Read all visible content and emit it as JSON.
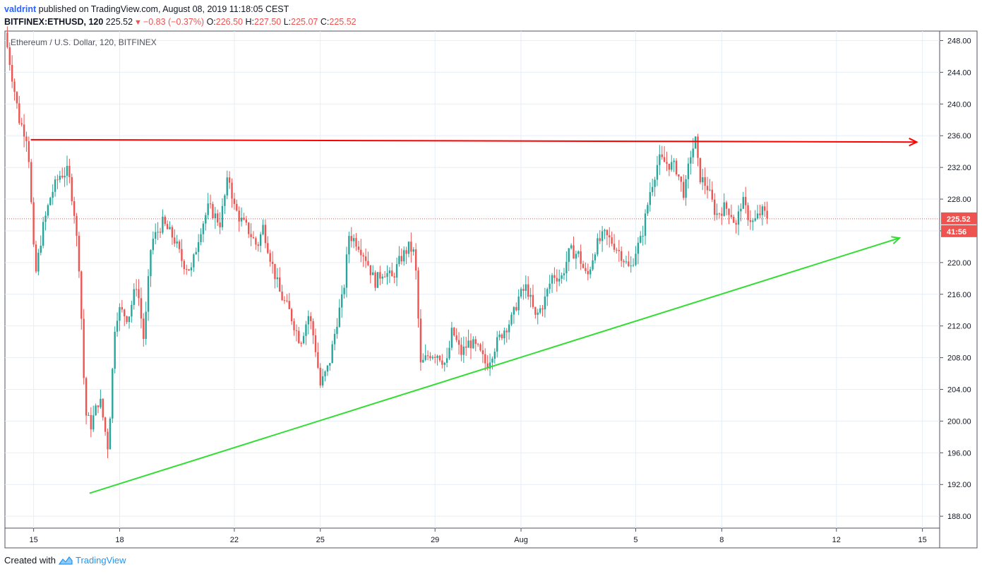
{
  "header": {
    "author": "valdrint",
    "published_text": "published on TradingView.com, August 08, 2019 11:18:05 CEST",
    "symbol": "BITFINEX:ETHUSD, 120",
    "last": "225.52",
    "change": "−0.83 (−0.37%)",
    "open_label": "O:",
    "open": "226.50",
    "high_label": "H:",
    "high": "227.50",
    "low_label": "L:",
    "low": "225.07",
    "close_label": "C:",
    "close": "225.52"
  },
  "footer": {
    "created_with": "Created with",
    "brand": "TradingView"
  },
  "colors": {
    "up": "#26a69a",
    "down": "#ef5350",
    "resistance": "#ff0000",
    "support": "#33dd33",
    "grid": "#e6eef6"
  },
  "chart_data": {
    "type": "candlestick",
    "title": "Ethereum / U.S. Dollar, 120, BITFINEX",
    "y_ticks": [
      "248.00",
      "244.00",
      "240.00",
      "236.00",
      "232.00",
      "228.00",
      "224.00",
      "220.00",
      "216.00",
      "212.00",
      "208.00",
      "204.00",
      "200.00",
      "196.00",
      "192.00",
      "188.00"
    ],
    "ylim": [
      186.5,
      249.2
    ],
    "x_ticks": [
      {
        "label": "15",
        "day": 15
      },
      {
        "label": "18",
        "day": 18
      },
      {
        "label": "22",
        "day": 22
      },
      {
        "label": "25",
        "day": 25
      },
      {
        "label": "29",
        "day": 29
      },
      {
        "label": "Aug",
        "day": 32
      },
      {
        "label": "5",
        "day": 36
      },
      {
        "label": "8",
        "day": 39
      },
      {
        "label": "12",
        "day": 43
      },
      {
        "label": "15",
        "day": 46
      }
    ],
    "x_unit": "day (July 2019; Aug 1 = day 32)",
    "xlim": [
      14.0,
      46.6
    ],
    "current_price": "225.52",
    "countdown": "41:56",
    "price_path": [
      [
        14.0,
        249.0
      ],
      [
        14.5,
        238
      ],
      [
        14.8,
        235.5
      ],
      [
        15.05,
        218
      ],
      [
        15.3,
        224
      ],
      [
        15.6,
        228.5
      ],
      [
        15.9,
        231
      ],
      [
        16.2,
        231.5
      ],
      [
        16.4,
        227
      ],
      [
        16.6,
        219
      ],
      [
        16.8,
        201
      ],
      [
        17.0,
        199.5
      ],
      [
        17.3,
        203
      ],
      [
        17.6,
        196.5
      ],
      [
        17.85,
        213
      ],
      [
        18.0,
        214
      ],
      [
        18.3,
        213
      ],
      [
        18.6,
        217.5
      ],
      [
        18.85,
        210
      ],
      [
        19.1,
        222.5
      ],
      [
        19.5,
        225
      ],
      [
        19.9,
        223
      ],
      [
        20.2,
        220
      ],
      [
        20.5,
        219
      ],
      [
        20.8,
        224
      ],
      [
        21.1,
        227
      ],
      [
        21.5,
        225
      ],
      [
        21.8,
        231
      ],
      [
        22.0,
        227
      ],
      [
        22.2,
        225.5
      ],
      [
        22.5,
        224
      ],
      [
        22.8,
        222
      ],
      [
        23.0,
        224.5
      ],
      [
        23.3,
        220
      ],
      [
        23.6,
        216
      ],
      [
        23.9,
        214
      ],
      [
        24.1,
        212
      ],
      [
        24.3,
        210
      ],
      [
        24.6,
        213.5
      ],
      [
        24.8,
        210
      ],
      [
        25.0,
        204.5
      ],
      [
        25.3,
        207
      ],
      [
        25.6,
        213
      ],
      [
        25.8,
        216
      ],
      [
        26.0,
        223.5
      ],
      [
        26.3,
        222.5
      ],
      [
        26.6,
        220.5
      ],
      [
        26.9,
        217.5
      ],
      [
        27.2,
        219
      ],
      [
        27.5,
        218
      ],
      [
        27.8,
        220.5
      ],
      [
        28.1,
        222
      ],
      [
        28.3,
        221
      ],
      [
        28.5,
        207
      ],
      [
        28.8,
        208.5
      ],
      [
        29.1,
        208.5
      ],
      [
        29.4,
        207
      ],
      [
        29.6,
        211.5
      ],
      [
        29.9,
        208.5
      ],
      [
        30.2,
        210
      ],
      [
        30.5,
        209
      ],
      [
        30.8,
        207
      ],
      [
        31.1,
        209.5
      ],
      [
        31.4,
        211.5
      ],
      [
        31.7,
        213
      ],
      [
        31.9,
        215.5
      ],
      [
        32.2,
        217
      ],
      [
        32.5,
        213
      ],
      [
        32.8,
        215
      ],
      [
        33.1,
        218.5
      ],
      [
        33.4,
        218
      ],
      [
        33.7,
        221.5
      ],
      [
        34.0,
        221
      ],
      [
        34.3,
        218
      ],
      [
        34.6,
        222
      ],
      [
        34.9,
        223.5
      ],
      [
        35.2,
        222.5
      ],
      [
        35.5,
        221
      ],
      [
        35.8,
        219
      ],
      [
        36.0,
        221.5
      ],
      [
        36.2,
        223
      ],
      [
        36.5,
        229
      ],
      [
        36.8,
        233
      ],
      [
        37.1,
        232.5
      ],
      [
        37.4,
        232
      ],
      [
        37.7,
        228.5
      ],
      [
        37.9,
        233.5
      ],
      [
        38.1,
        235.5
      ],
      [
        38.2,
        231
      ],
      [
        38.5,
        229.5
      ],
      [
        38.8,
        226
      ],
      [
        39.1,
        227
      ],
      [
        39.3,
        226.5
      ],
      [
        39.5,
        224.5
      ],
      [
        39.7,
        228
      ],
      [
        39.9,
        226
      ],
      [
        40.1,
        225
      ],
      [
        40.4,
        226.5
      ],
      [
        40.65,
        225.52
      ]
    ],
    "resistance_line": {
      "from": [
        14.9,
        235.5
      ],
      "to": [
        45.8,
        235.2
      ]
    },
    "support_line": {
      "from": [
        16.95,
        190.9
      ],
      "to": [
        45.2,
        223.1
      ]
    }
  }
}
